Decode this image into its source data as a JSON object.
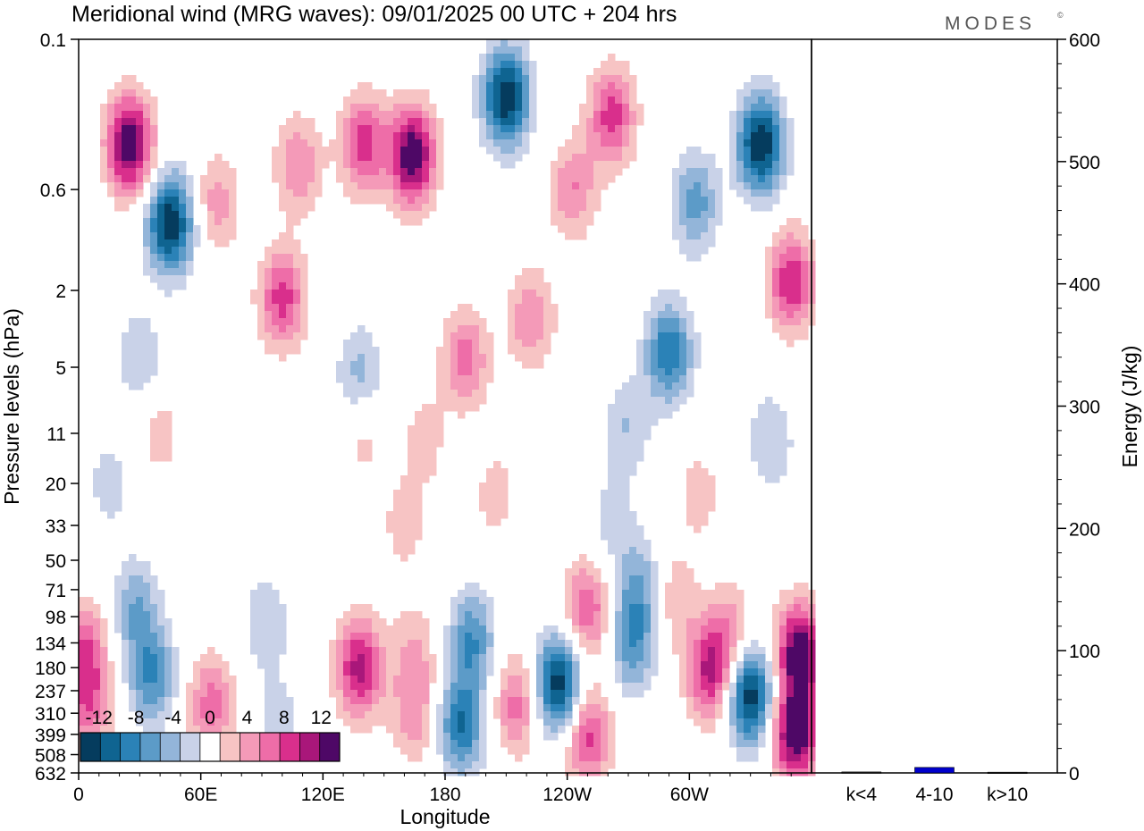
{
  "chart_data": {
    "type": "heatmap",
    "title": "Meridional wind (MRG waves):  09/01/2025  00 UTC  + 204 hrs",
    "logo": "MODES",
    "logo_mark": "©",
    "xlabel": "Longitude",
    "ylabel": "Pressure levels (hPa)",
    "x_ticks": [
      "0",
      "60E",
      "120E",
      "180",
      "120W",
      "60W"
    ],
    "x_tick_values": [
      0,
      60,
      120,
      180,
      240,
      300
    ],
    "x_range": [
      0,
      360
    ],
    "y_ticks": [
      "0.1",
      "0.6",
      "2",
      "5",
      "11",
      "20",
      "33",
      "50",
      "71",
      "98",
      "134",
      "180",
      "237",
      "310",
      "399",
      "508",
      "632"
    ],
    "colorbar": {
      "tick_labels": [
        "-12",
        "-8",
        "-4",
        "0",
        "4",
        "8",
        "12"
      ],
      "levels": [
        -14,
        -12,
        -10,
        -8,
        -6,
        -4,
        -2,
        2,
        4,
        6,
        8,
        10,
        12,
        14
      ],
      "colors": [
        "#053c5e",
        "#0f6491",
        "#2b82b7",
        "#5c9bc8",
        "#93b5d9",
        "#c9d2e8",
        "#ffffff",
        "#f7c4c4",
        "#f49ab8",
        "#ee6da8",
        "#d92f8c",
        "#a9177a",
        "#4e0866"
      ]
    },
    "field_blobs": [
      {
        "lon": 25,
        "p": 0.35,
        "v": 14
      },
      {
        "lon": 45,
        "p": 0.9,
        "v": -14
      },
      {
        "lon": 68,
        "p": 0.7,
        "v": 5
      },
      {
        "lon": 108,
        "p": 0.45,
        "v": 6
      },
      {
        "lon": 100,
        "p": 2.2,
        "v": 9
      },
      {
        "lon": 140,
        "p": 0.35,
        "v": 9
      },
      {
        "lon": 164,
        "p": 0.4,
        "v": 14
      },
      {
        "lon": 210,
        "p": 0.2,
        "v": -14
      },
      {
        "lon": 262,
        "p": 0.25,
        "v": 9
      },
      {
        "lon": 243,
        "p": 0.6,
        "v": 6
      },
      {
        "lon": 303,
        "p": 0.7,
        "v": -7
      },
      {
        "lon": 335,
        "p": 0.35,
        "v": -14
      },
      {
        "lon": 350,
        "p": 1.8,
        "v": 10
      },
      {
        "lon": 222,
        "p": 2.8,
        "v": 6
      },
      {
        "lon": 190,
        "p": 4.5,
        "v": 7
      },
      {
        "lon": 290,
        "p": 4.2,
        "v": -10
      },
      {
        "lon": 270,
        "p": 10,
        "v": -4
      },
      {
        "lon": 138,
        "p": 5.5,
        "v": -5
      },
      {
        "lon": 30,
        "p": 4.5,
        "v": -4
      },
      {
        "lon": 40,
        "p": 11,
        "v": 3
      },
      {
        "lon": 170,
        "p": 12,
        "v": 3
      },
      {
        "lon": 140,
        "p": 11,
        "v": 3
      },
      {
        "lon": 205,
        "p": 23,
        "v": 3
      },
      {
        "lon": 340,
        "p": 12,
        "v": -4
      },
      {
        "lon": 305,
        "p": 23,
        "v": 3
      },
      {
        "lon": 15,
        "p": 20,
        "v": -3
      },
      {
        "lon": 160,
        "p": 33,
        "v": 3
      },
      {
        "lon": 262,
        "p": 31,
        "v": -3
      },
      {
        "lon": 320,
        "p": 120,
        "v": 5
      },
      {
        "lon": 28,
        "p": 90,
        "v": -6
      },
      {
        "lon": 36,
        "p": 200,
        "v": -8
      },
      {
        "lon": 3,
        "p": 150,
        "v": 8
      },
      {
        "lon": 5,
        "p": 300,
        "v": 6
      },
      {
        "lon": 65,
        "p": 280,
        "v": 7
      },
      {
        "lon": 92,
        "p": 105,
        "v": -4
      },
      {
        "lon": 98,
        "p": 350,
        "v": -3
      },
      {
        "lon": 138,
        "p": 180,
        "v": 11
      },
      {
        "lon": 165,
        "p": 150,
        "v": 4
      },
      {
        "lon": 165,
        "p": 320,
        "v": 5
      },
      {
        "lon": 193,
        "p": 130,
        "v": -8
      },
      {
        "lon": 188,
        "p": 360,
        "v": -10
      },
      {
        "lon": 215,
        "p": 280,
        "v": 7
      },
      {
        "lon": 236,
        "p": 220,
        "v": -14
      },
      {
        "lon": 250,
        "p": 90,
        "v": 8
      },
      {
        "lon": 250,
        "p": 400,
        "v": 9
      },
      {
        "lon": 272,
        "p": 140,
        "v": -7
      },
      {
        "lon": 275,
        "p": 70,
        "v": -6
      },
      {
        "lon": 293,
        "p": 80,
        "v": 4
      },
      {
        "lon": 310,
        "p": 190,
        "v": 10
      },
      {
        "lon": 330,
        "p": 250,
        "v": -14
      },
      {
        "lon": 354,
        "p": 150,
        "v": 14
      },
      {
        "lon": 352,
        "p": 400,
        "v": 14
      }
    ],
    "energy": {
      "ylabel": "Energy (J/kg)",
      "y_ticks": [
        "0",
        "100",
        "200",
        "300",
        "400",
        "500",
        "600"
      ],
      "ylim": [
        0,
        600
      ],
      "categories": [
        "k<4",
        "4-10",
        "k>10"
      ],
      "values": [
        0.8,
        4.5,
        0.6
      ],
      "bar_colors": [
        "#1a1a1a",
        "#0000cc",
        "#1a1a1a"
      ]
    }
  }
}
